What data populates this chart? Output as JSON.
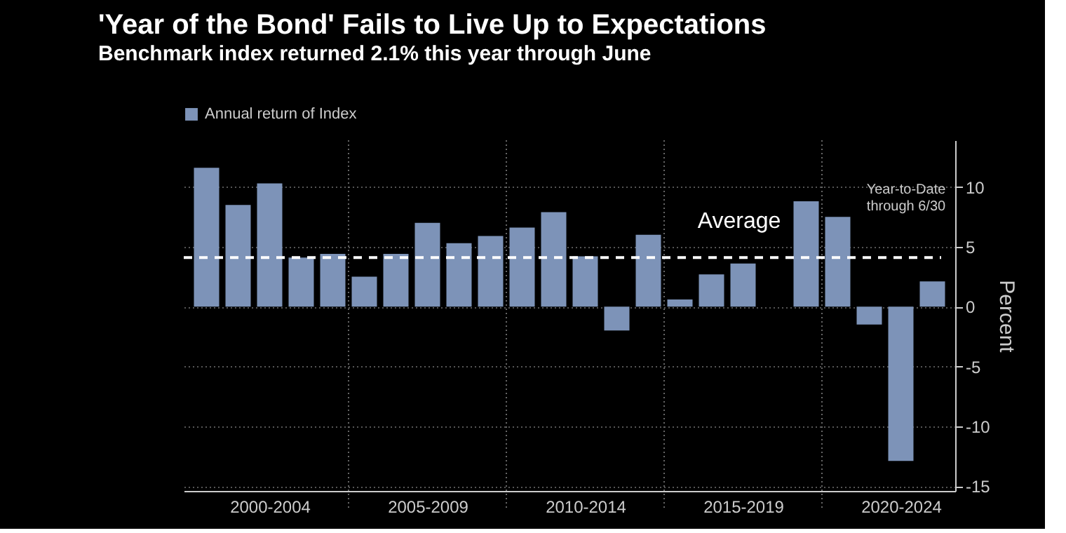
{
  "chart_data": {
    "type": "bar",
    "title": "'Year of the Bond' Fails to Live Up to Expectations",
    "subtitle": "Benchmark index returned 2.1% this year through June",
    "categories": [
      null,
      null,
      "2000-2004",
      null,
      null,
      null,
      null,
      "2005-2009",
      null,
      null,
      null,
      null,
      "2010-2014",
      null,
      null,
      null,
      null,
      "2015-2019",
      null,
      null,
      null,
      null,
      "2020-2024",
      null
    ],
    "series": [
      {
        "name": "Annual return of Index",
        "color": "#7d93b8",
        "values": [
          11.6,
          8.5,
          10.3,
          4.1,
          4.4,
          2.5,
          4.4,
          7.0,
          5.3,
          5.9,
          6.6,
          7.9,
          4.2,
          -2.0,
          6.0,
          0.6,
          2.7,
          3.6,
          0.0,
          8.8,
          7.5,
          -1.5,
          -12.9,
          2.1
        ]
      }
    ],
    "ylim": [
      -15.4,
      13.9
    ],
    "yticks": [
      -15,
      -10,
      -5,
      0,
      5,
      10
    ],
    "ylabel": "Percent",
    "ref_lines": [
      {
        "axis": "y",
        "value": 4.1,
        "label": "Average",
        "color": "#ffffff",
        "line_style": "dashed"
      }
    ],
    "annotations": [
      "Year-to-Date\nthrough 6/30"
    ],
    "grid": "y",
    "legend": "top left"
  }
}
